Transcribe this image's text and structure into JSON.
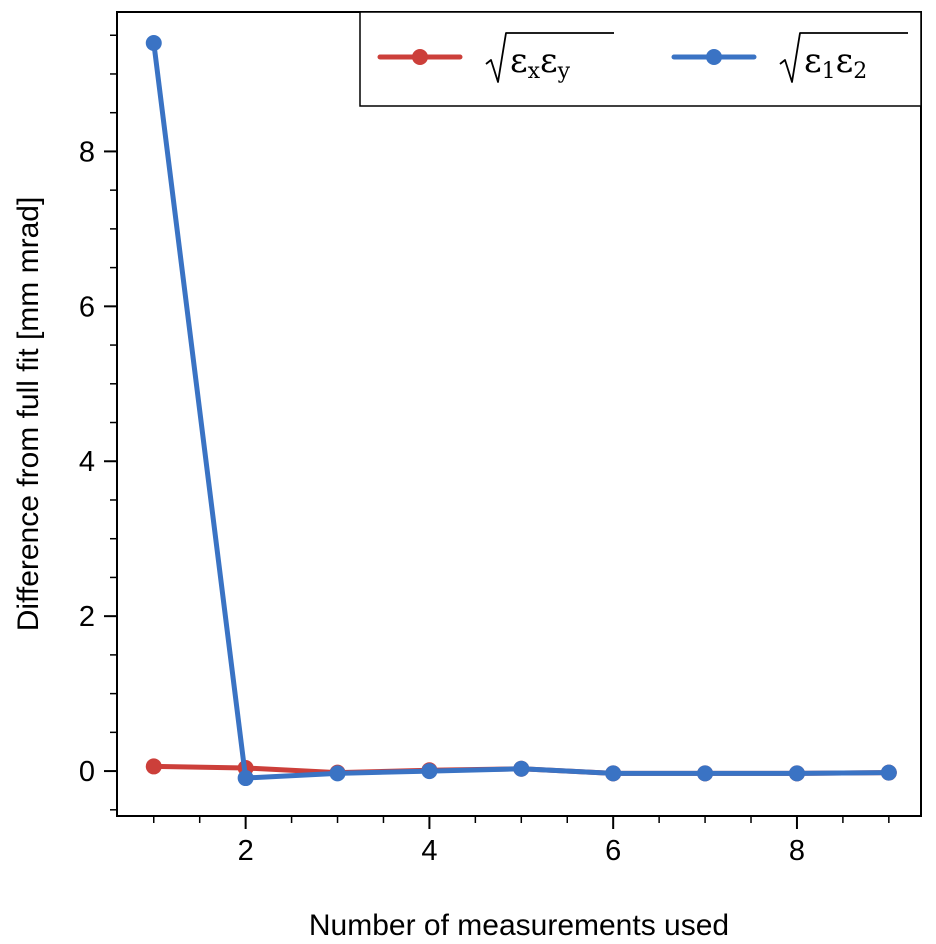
{
  "chart_data": {
    "type": "line",
    "xlabel": "Number of measurements used",
    "ylabel": "Difference from full fit [mm mrad]",
    "xlim": [
      0.6,
      9.35
    ],
    "ylim": [
      -0.58,
      9.8
    ],
    "x_ticks": [
      2,
      4,
      6,
      8
    ],
    "x_tick_labels": [
      "2",
      "4",
      "6",
      "8"
    ],
    "y_ticks": [
      0,
      2,
      4,
      6,
      8
    ],
    "y_tick_labels": [
      "0",
      "2",
      "4",
      "6",
      "8"
    ],
    "x_minor_ticks": [
      1,
      1.5,
      2.5,
      3,
      3.5,
      4.5,
      5,
      5.5,
      6.5,
      7,
      7.5,
      8.5,
      9
    ],
    "y_minor_ticks": [
      -0.5,
      0.5,
      1,
      1.5,
      2.5,
      3,
      3.5,
      4.5,
      5,
      5.5,
      6.5,
      7,
      7.5,
      8.5,
      9,
      9.5
    ],
    "grid": false,
    "legend_position": "top-right",
    "series": [
      {
        "name": "√(εxεy)",
        "legend": {
          "main": "ε",
          "sub1": "x",
          "mid": "ε",
          "sub2": "y"
        },
        "color": "#cc3f3a",
        "x": [
          1,
          2,
          3,
          4,
          5,
          6,
          7,
          8,
          9
        ],
        "y": [
          0.06,
          0.04,
          -0.02,
          0.01,
          0.03,
          -0.03,
          -0.03,
          -0.03,
          -0.02
        ]
      },
      {
        "name": "√(ε1ε2)",
        "legend": {
          "main": "ε",
          "sub1": "1",
          "mid": "ε",
          "sub2": "2"
        },
        "color": "#3a73c4",
        "x": [
          1,
          2,
          3,
          4,
          5,
          6,
          7,
          8,
          9
        ],
        "y": [
          9.4,
          -0.09,
          -0.03,
          0.0,
          0.03,
          -0.03,
          -0.03,
          -0.03,
          -0.02
        ]
      }
    ]
  }
}
